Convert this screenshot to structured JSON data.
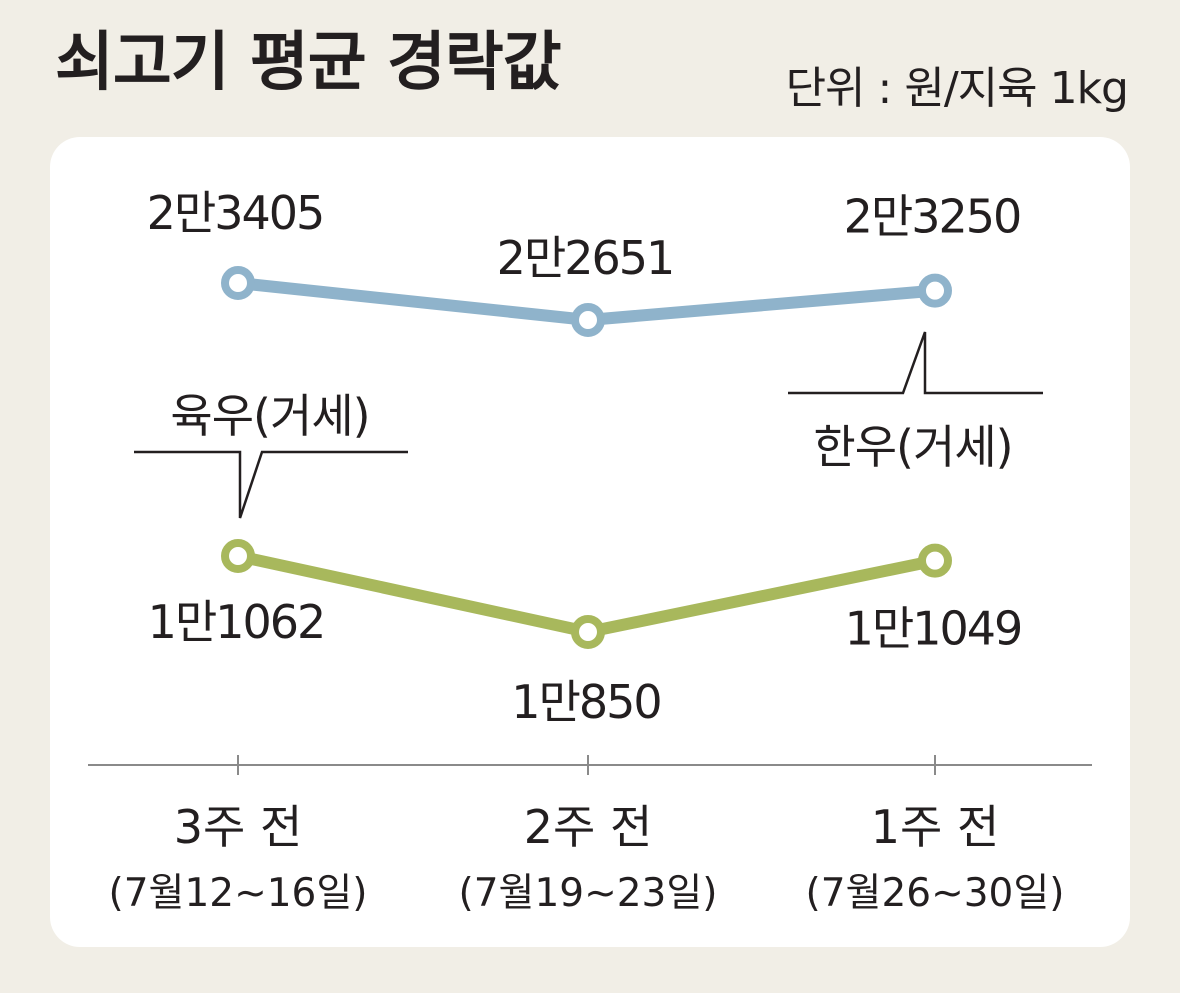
{
  "title": "쇠고기 평균 경락값",
  "unit": "단위 : 원/지육 1kg",
  "colors": {
    "hanwoo": "#8fb3cb",
    "yukwoo": "#a8b85c",
    "panel": "#ffffff",
    "background": "#f1eee6"
  },
  "chart_data": {
    "type": "line",
    "categories": [
      {
        "label": "3주 전",
        "sub": "(7월12~16일)"
      },
      {
        "label": "2주 전",
        "sub": "(7월19~23일)"
      },
      {
        "label": "1주 전",
        "sub": "(7월26~30일)"
      }
    ],
    "series": [
      {
        "name": "한우(거세)",
        "values": [
          23405,
          22651,
          23250
        ],
        "value_labels": [
          "2만3405",
          "2만2651",
          "2만3250"
        ]
      },
      {
        "name": "육우(거세)",
        "values": [
          11062,
          10850,
          11049
        ],
        "value_labels": [
          "1만1062",
          "1만850",
          "1만1049"
        ]
      }
    ]
  }
}
